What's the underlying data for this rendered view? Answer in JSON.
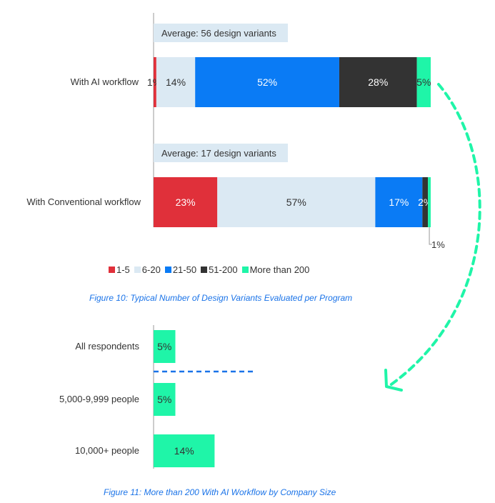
{
  "chart_data": [
    {
      "type": "bar",
      "orientation": "horizontal",
      "stacked": true,
      "categories": [
        "With AI workflow",
        "With Conventional workflow"
      ],
      "series": [
        {
          "name": "1-5",
          "values": [
            1,
            23
          ],
          "labels": [
            "1%",
            "23%"
          ],
          "color": "#e0303a"
        },
        {
          "name": "6-20",
          "values": [
            14,
            57
          ],
          "labels": [
            "14%",
            "57%"
          ],
          "color": "#dbe9f3"
        },
        {
          "name": "21-50",
          "values": [
            52,
            17
          ],
          "labels": [
            "52%",
            "17%"
          ],
          "color": "#0a7bf5"
        },
        {
          "name": "51-200",
          "values": [
            28,
            2
          ],
          "labels": [
            "28%",
            "2%"
          ],
          "color": "#333333"
        },
        {
          "name": "More than 200",
          "values": [
            5,
            1
          ],
          "labels": [
            "5%",
            "1%"
          ],
          "color": "#1ff5a8"
        }
      ],
      "annotations": [
        "Average: 56 design variants",
        "Average: 17 design variants"
      ],
      "legend_position": "bottom",
      "title": "Figure 10: Typical Number of Design Variants Evaluated per Program",
      "xlim": [
        0,
        100
      ]
    },
    {
      "type": "bar",
      "orientation": "horizontal",
      "categories": [
        "All respondents",
        "5,000-9,999 people",
        "10,000+ people"
      ],
      "values": [
        5,
        5,
        14
      ],
      "labels": [
        "5%",
        "5%",
        "14%"
      ],
      "color": "#1ff5a8",
      "title": "Figure 11: More than 200 With AI Workflow by Company Size"
    }
  ],
  "legend": [
    {
      "name": "1-5",
      "color": "#e0303a"
    },
    {
      "name": "6-20",
      "color": "#dbe9f3"
    },
    {
      "name": "21-50",
      "color": "#0a7bf5"
    },
    {
      "name": "51-200",
      "color": "#333333"
    },
    {
      "name": "More than 200",
      "color": "#1ff5a8"
    }
  ],
  "captions": {
    "fig10": "Figure 10: Typical Number of Design Variants Evaluated per Program",
    "fig11": "Figure 11: More than 200 With AI Workflow by Company Size"
  },
  "colors": {
    "caption": "#1a73e8",
    "arrow": "#1ff5a8",
    "divider": "#1a73e8",
    "average_bg": "#dbe9f3"
  }
}
